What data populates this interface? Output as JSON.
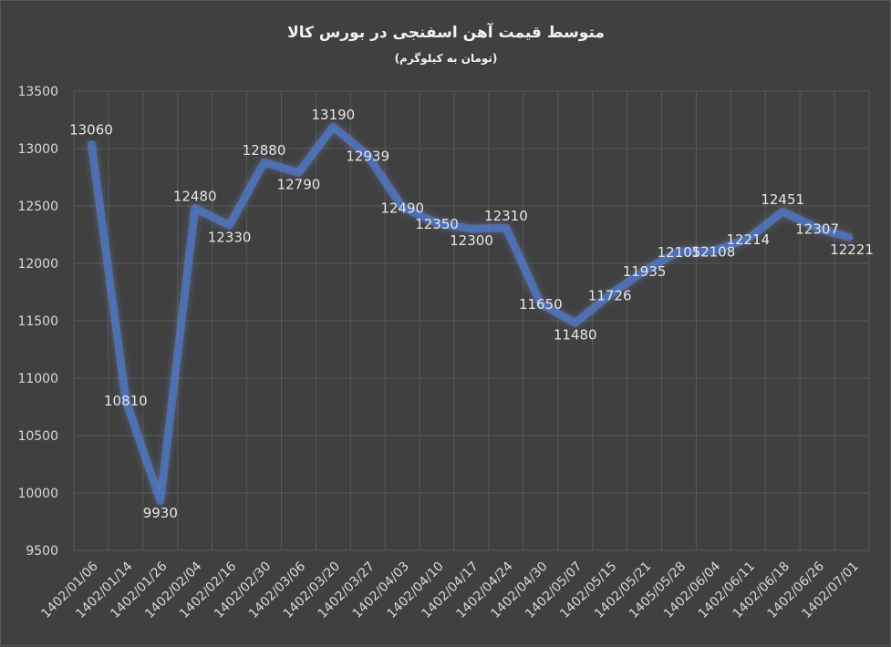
{
  "chart_data": {
    "type": "line",
    "title": "متوسط قیمت آهن اسفنجی در بورس کالا",
    "subtitle": "(تومان به کیلوگرم)",
    "categories": [
      "1402/01/06",
      "1402/01/14",
      "1402/01/26",
      "1402/02/04",
      "1402/02/16",
      "1402/02/30",
      "1402/03/06",
      "1402/03/20",
      "1402/03/27",
      "1402/04/03",
      "1402/04/10",
      "1402/04/17",
      "1402/04/24",
      "1402/04/30",
      "1402/05/07",
      "1402/05/15",
      "1402/05/21",
      "1405/05/28",
      "1402/06/04",
      "1402/06/11",
      "1402/06/18",
      "1402/06/26",
      "1402/07/01"
    ],
    "series": [
      {
        "values": [
          13060,
          10810,
          9930,
          12480,
          12330,
          12880,
          12790,
          13190,
          12939,
          12490,
          12350,
          12300,
          12310,
          11650,
          11480,
          11726,
          11935,
          12105,
          12108,
          12214,
          12451,
          12307,
          12221
        ]
      }
    ],
    "ylim": [
      9500,
      13500
    ],
    "yticks": [
      9500,
      10000,
      10500,
      11000,
      11500,
      12000,
      12500,
      13000,
      13500
    ],
    "grid": true,
    "legend": "none",
    "line_color": "#4472c4",
    "glow_color": "#6f9cff"
  }
}
